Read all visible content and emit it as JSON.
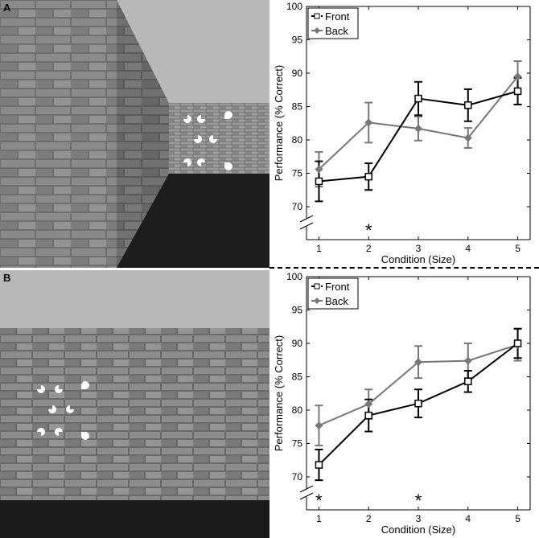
{
  "panels": [
    {
      "letter": "A",
      "chart_data": {
        "type": "line",
        "xlabel": "Condition (Size)",
        "ylabel": "Performance (% Correct)",
        "xlim": [
          0.75,
          5.25
        ],
        "ylim": [
          70,
          100
        ],
        "axis_break": true,
        "x": [
          1,
          2,
          3,
          4,
          5
        ],
        "xticks": [
          "1",
          "2",
          "3",
          "4",
          "5"
        ],
        "yticks": [
          "70",
          "75",
          "80",
          "85",
          "90",
          "95",
          "100"
        ],
        "legend_position": "top-left",
        "series": [
          {
            "name": "Front",
            "color": "#000000",
            "marker": "open-square",
            "values": [
              73.8,
              74.5,
              86.2,
              85.2,
              87.3
            ],
            "errors": [
              3.0,
              2.0,
              2.5,
              2.4,
              2.0
            ]
          },
          {
            "name": "Back",
            "color": "#777777",
            "marker": "filled-diamond",
            "values": [
              75.6,
              82.6,
              81.7,
              80.3,
              89.5
            ],
            "errors": [
              2.6,
              3.0,
              1.8,
              1.5,
              2.3
            ]
          }
        ],
        "significance": [
          {
            "x": 2,
            "label": "*"
          }
        ]
      }
    },
    {
      "letter": "B",
      "chart_data": {
        "type": "line",
        "xlabel": "Condition (Size)",
        "ylabel": "Performance (% Correct)",
        "xlim": [
          0.75,
          5.25
        ],
        "ylim": [
          70,
          100
        ],
        "axis_break": true,
        "x": [
          1,
          2,
          3,
          4,
          5
        ],
        "xticks": [
          "1",
          "2",
          "3",
          "4",
          "5"
        ],
        "yticks": [
          "70",
          "75",
          "80",
          "85",
          "90",
          "95",
          "100"
        ],
        "legend_position": "top-left",
        "series": [
          {
            "name": "Front",
            "color": "#000000",
            "marker": "open-square",
            "values": [
              71.8,
              79.2,
              81.0,
              84.3,
              90.0
            ],
            "errors": [
              2.3,
              2.4,
              2.1,
              1.6,
              2.2
            ]
          },
          {
            "name": "Back",
            "color": "#777777",
            "marker": "filled-diamond",
            "values": [
              77.7,
              80.9,
              87.2,
              87.4,
              89.8
            ],
            "errors": [
              3.0,
              2.2,
              2.4,
              2.6,
              2.4
            ]
          }
        ],
        "significance": [
          {
            "x": 1,
            "label": "*"
          },
          {
            "x": 3,
            "label": "*"
          }
        ]
      }
    }
  ]
}
